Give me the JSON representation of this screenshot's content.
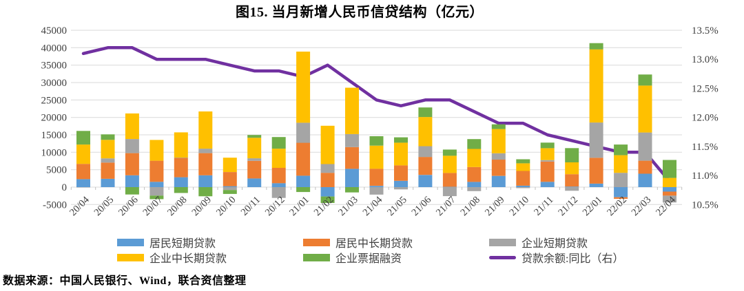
{
  "source_note": "数据来源：中国人民银行、Wind，联合资信整理",
  "chart_data": {
    "type": "bar",
    "subtype": "stacked-bar-with-line-combo",
    "title": "图15. 当月新增人民币信贷结构（亿元）",
    "xlabel": "",
    "ylabel": "",
    "grid": true,
    "legend_position": "bottom",
    "left_axis": {
      "min": -5000,
      "max": 45000,
      "step": 5000
    },
    "right_axis": {
      "min": 10.5,
      "max": 13.5,
      "step": 0.5,
      "suffix": "%"
    },
    "categories": [
      "20/04",
      "20/05",
      "20/06",
      "20/07",
      "20/08",
      "20/09",
      "20/10",
      "20/11",
      "20/12",
      "21/01",
      "21/02",
      "21/03",
      "21/04",
      "21/05",
      "21/06",
      "21/07",
      "21/08",
      "21/09",
      "21/10",
      "21/11",
      "21/12",
      "22/01",
      "22/02",
      "22/03",
      "22/04"
    ],
    "series": [
      {
        "key": "resident-short-term-loans",
        "name": "居民短期贷款",
        "type": "bar",
        "axis": "left",
        "color": "#5B9BD5",
        "values": [
          2280,
          2381,
          3400,
          1510,
          2844,
          3394,
          272,
          2486,
          1142,
          3278,
          -2691,
          5242,
          365,
          1806,
          3500,
          85,
          1496,
          3219,
          426,
          1517,
          157,
          1006,
          -2911,
          3848,
          -1282
        ]
      },
      {
        "key": "resident-medium-long-term-loans",
        "name": "居民中长期贷款",
        "type": "bar",
        "axis": "left",
        "color": "#ED7D31",
        "values": [
          4389,
          4662,
          6349,
          6067,
          5571,
          6362,
          4059,
          5049,
          4392,
          9448,
          4113,
          6239,
          4918,
          4426,
          5156,
          3974,
          4259,
          4667,
          4221,
          5821,
          3558,
          7424,
          -459,
          3735,
          -1156
        ]
      },
      {
        "key": "corporate-short-term-loans",
        "name": "企业短期贷款",
        "type": "bar",
        "axis": "left",
        "color": "#A5A5A5",
        "values": [
          -62,
          1211,
          4051,
          -2421,
          47,
          1274,
          -837,
          734,
          -3097,
          5755,
          2497,
          3748,
          -2147,
          -644,
          3091,
          -2577,
          -1149,
          1826,
          -288,
          410,
          -1054,
          10100,
          4111,
          8089,
          -1948
        ]
      },
      {
        "key": "corporate-medium-long-term-loans",
        "name": "企业中长期贷款",
        "type": "bar",
        "axis": "left",
        "color": "#FFC000",
        "values": [
          5547,
          5305,
          7348,
          5968,
          7252,
          10680,
          4113,
          5887,
          5500,
          20400,
          11000,
          13300,
          6605,
          6528,
          8367,
          4937,
          5215,
          6948,
          2190,
          3417,
          3393,
          21000,
          5052,
          13448,
          2652
        ]
      },
      {
        "key": "corporate-bill-financing",
        "name": "企业票据融资",
        "type": "bar",
        "axis": "left",
        "color": "#70AD47",
        "values": [
          3910,
          1586,
          -2104,
          -1021,
          -1676,
          -2632,
          -1124,
          804,
          3341,
          -1405,
          -1855,
          -1525,
          2711,
          1538,
          2747,
          1771,
          2813,
          1353,
          1160,
          1605,
          4087,
          1788,
          3052,
          3187,
          5148
        ]
      },
      {
        "key": "loan-balance-yoy-right",
        "name": "贷款余额:同比（右）",
        "type": "line",
        "axis": "right",
        "color": "#7030A0",
        "values": [
          13.1,
          13.2,
          13.2,
          13.0,
          13.0,
          13.0,
          12.9,
          12.8,
          12.8,
          12.7,
          12.9,
          12.6,
          12.3,
          12.2,
          12.3,
          12.3,
          12.1,
          11.9,
          11.9,
          11.7,
          11.6,
          11.5,
          11.4,
          11.4,
          10.9
        ]
      }
    ]
  }
}
